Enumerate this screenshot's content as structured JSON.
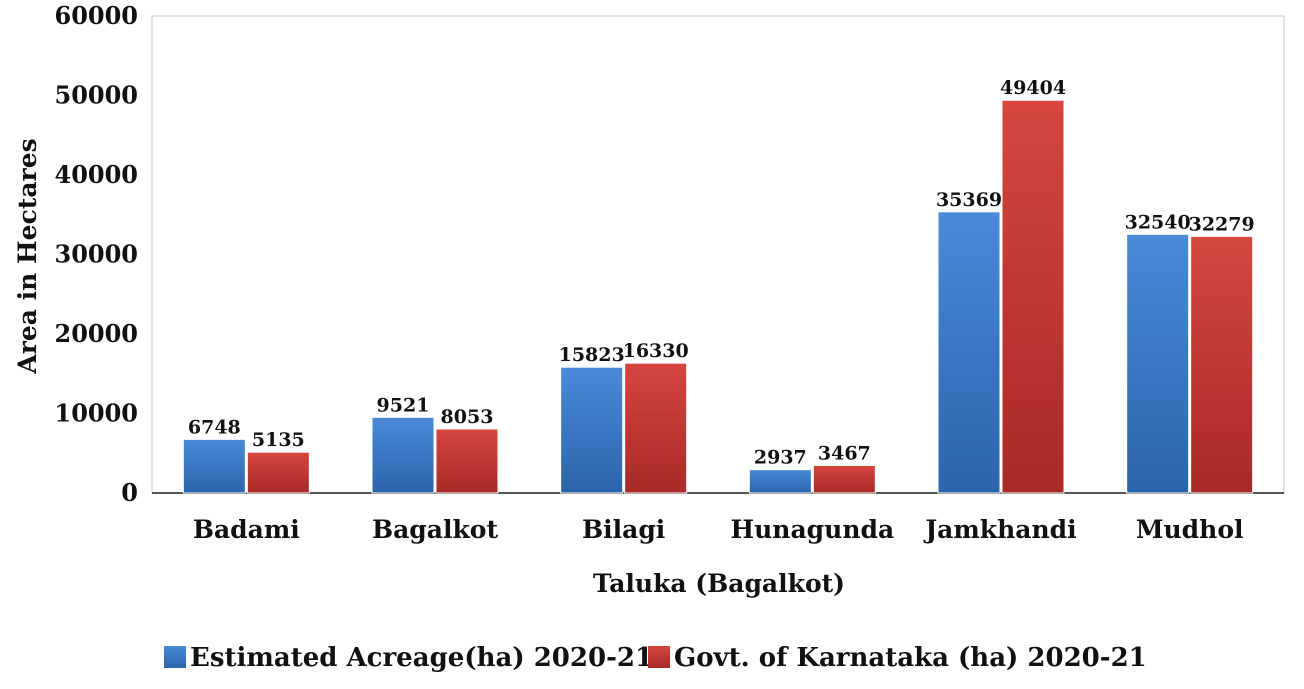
{
  "chart_data": {
    "type": "bar",
    "title": "",
    "xlabel": "Taluka (Bagalkot)",
    "ylabel": "Area in Hectares",
    "ylim": [
      0,
      60000
    ],
    "yticks": [
      0,
      10000,
      20000,
      30000,
      40000,
      50000,
      60000
    ],
    "grid": false,
    "legend_position": "bottom",
    "categories": [
      "Badami",
      "Bagalkot",
      "Bilagi",
      "Hunagunda",
      "Jamkhandi",
      "Mudhol"
    ],
    "series": [
      {
        "name": "Estimated Acreage(ha) 2020-21",
        "color": "#3a7bc8",
        "values": [
          6748,
          9521,
          15823,
          2937,
          35369,
          32540
        ]
      },
      {
        "name": "Govt. of Karnataka (ha) 2020-21",
        "color": "#c93a36",
        "values": [
          5135,
          8053,
          16330,
          3467,
          49404,
          32279
        ]
      }
    ]
  }
}
